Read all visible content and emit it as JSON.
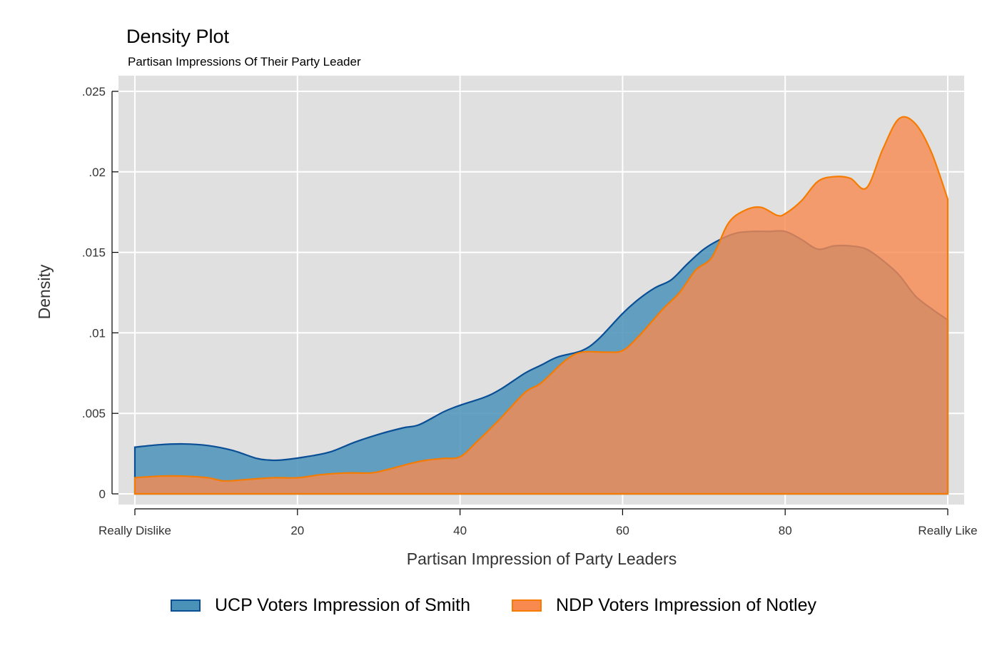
{
  "chart_data": {
    "type": "area",
    "title": "Density Plot",
    "subtitle": "Partisan Impressions Of Their Party Leader",
    "xlabel": "Partisan Impression of Party Leaders",
    "ylabel": "Density",
    "xlim": [
      0,
      100
    ],
    "ylim": [
      0,
      0.025
    ],
    "x_ticks": [
      {
        "value": 0,
        "label": "Really Dislike"
      },
      {
        "value": 20,
        "label": "20"
      },
      {
        "value": 40,
        "label": "40"
      },
      {
        "value": 60,
        "label": "60"
      },
      {
        "value": 80,
        "label": "80"
      },
      {
        "value": 100,
        "label": "Really Like"
      }
    ],
    "y_ticks": [
      {
        "value": 0,
        "label": "0"
      },
      {
        "value": 0.005,
        "label": ".005"
      },
      {
        "value": 0.01,
        "label": ".01"
      },
      {
        "value": 0.015,
        "label": ".015"
      },
      {
        "value": 0.02,
        "label": ".02"
      },
      {
        "value": 0.025,
        "label": ".025"
      }
    ],
    "grid": true,
    "legend_position": "bottom",
    "series": [
      {
        "name": "UCP Voters Impression of Smith",
        "fill": "#4a92b8",
        "stroke": "#0a4f96",
        "points": [
          [
            0,
            0.0029
          ],
          [
            3,
            0.00305
          ],
          [
            6,
            0.0031
          ],
          [
            9,
            0.003
          ],
          [
            12,
            0.0027
          ],
          [
            15,
            0.0022
          ],
          [
            16.5,
            0.0021
          ],
          [
            18,
            0.0021
          ],
          [
            21,
            0.0023
          ],
          [
            24,
            0.0026
          ],
          [
            27,
            0.0032
          ],
          [
            30,
            0.0037
          ],
          [
            33,
            0.0041
          ],
          [
            35,
            0.0043
          ],
          [
            38,
            0.0051
          ],
          [
            40,
            0.0055
          ],
          [
            43,
            0.006
          ],
          [
            45,
            0.0065
          ],
          [
            48,
            0.0075
          ],
          [
            50,
            0.008
          ],
          [
            52,
            0.0085
          ],
          [
            55,
            0.0089
          ],
          [
            57,
            0.0096
          ],
          [
            60,
            0.0112
          ],
          [
            62,
            0.0121
          ],
          [
            64,
            0.0128
          ],
          [
            66,
            0.0133
          ],
          [
            68,
            0.0143
          ],
          [
            70,
            0.0152
          ],
          [
            72,
            0.0158
          ],
          [
            74,
            0.0162
          ],
          [
            76,
            0.0163
          ],
          [
            78,
            0.0163
          ],
          [
            80,
            0.0163
          ],
          [
            82,
            0.0158
          ],
          [
            84,
            0.0152
          ],
          [
            86,
            0.0154
          ],
          [
            88,
            0.0154
          ],
          [
            90,
            0.0152
          ],
          [
            92,
            0.0145
          ],
          [
            94,
            0.0136
          ],
          [
            96,
            0.0123
          ],
          [
            98,
            0.0115
          ],
          [
            100,
            0.0108
          ]
        ]
      },
      {
        "name": "NDP Voters Impression of Notley",
        "fill": "#f88a4f",
        "stroke": "#f57c00",
        "points": [
          [
            0,
            0.001
          ],
          [
            3,
            0.0011
          ],
          [
            6,
            0.0011
          ],
          [
            9,
            0.001
          ],
          [
            11,
            0.0008
          ],
          [
            14,
            0.0009
          ],
          [
            17,
            0.001
          ],
          [
            20,
            0.001
          ],
          [
            23,
            0.0012
          ],
          [
            26,
            0.0013
          ],
          [
            29,
            0.0013
          ],
          [
            31,
            0.0015
          ],
          [
            34,
            0.0019
          ],
          [
            36,
            0.0021
          ],
          [
            38,
            0.0022
          ],
          [
            40,
            0.0023
          ],
          [
            42,
            0.0032
          ],
          [
            45,
            0.0047
          ],
          [
            48,
            0.0063
          ],
          [
            50,
            0.0069
          ],
          [
            53,
            0.0083
          ],
          [
            55,
            0.0088
          ],
          [
            58,
            0.0088
          ],
          [
            60,
            0.0089
          ],
          [
            62,
            0.0098
          ],
          [
            65,
            0.0115
          ],
          [
            67,
            0.0125
          ],
          [
            69,
            0.0139
          ],
          [
            71,
            0.0147
          ],
          [
            73,
            0.0168
          ],
          [
            75,
            0.0176
          ],
          [
            77,
            0.0178
          ],
          [
            79,
            0.0173
          ],
          [
            80,
            0.0174
          ],
          [
            82,
            0.0182
          ],
          [
            84,
            0.0194
          ],
          [
            86,
            0.0197
          ],
          [
            88,
            0.0196
          ],
          [
            90,
            0.019
          ],
          [
            92,
            0.0214
          ],
          [
            94,
            0.0233
          ],
          [
            96,
            0.023
          ],
          [
            98,
            0.0212
          ],
          [
            100,
            0.0183
          ]
        ]
      }
    ]
  }
}
